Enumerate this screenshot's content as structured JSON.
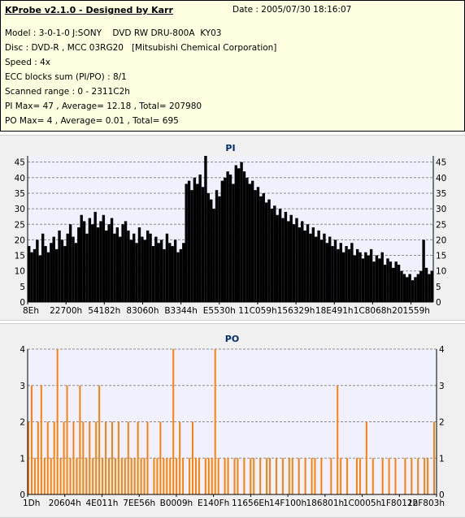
{
  "info": {
    "title": "KProbe v2.1.0 - Designed by Karr",
    "date": "Date : 2005/07/30 18:16:07",
    "lines": [
      "Model : 3-0-1-0 J:SONY    DVD RW DRU-800A  KY03",
      "Disc : DVD-R , MCC 03RG20   [Mitsubishi Chemical Corporation]",
      "Speed : 4x",
      "ECC blocks sum (PI/PO) : 8/1",
      "Scanned range : 0 - 2311C2h",
      "PI Max= 47 , Average= 12.18 , Total= 207980",
      "PO Max= 4 , Average= 0.01 , Total= 695"
    ]
  },
  "colors": {
    "pi": "#000000",
    "po": "#ff8000",
    "plot_bg": "#f0f0ff",
    "axis": "#000000",
    "title": "#002e6b"
  },
  "chart_data": [
    {
      "type": "area",
      "title": "PI",
      "ylim": [
        0,
        47
      ],
      "yticks": [
        0,
        5,
        10,
        15,
        20,
        25,
        30,
        35,
        40,
        45
      ],
      "xticks": [
        "8Eh",
        "22700h",
        "54182h",
        "83060h",
        "B3344h",
        "E5530h",
        "11C059h",
        "156329h",
        "18E491h",
        "1C8068h",
        "201559h"
      ],
      "grid": "horizontal dashed",
      "series": [
        {
          "values": [
            18,
            16,
            17,
            20,
            15,
            22,
            18,
            16,
            19,
            21,
            17,
            23,
            20,
            18,
            22,
            25,
            21,
            19,
            24,
            28,
            26,
            22,
            27,
            25,
            29,
            24,
            26,
            28,
            23,
            25,
            27,
            22,
            24,
            21,
            25,
            26,
            23,
            20,
            22,
            19,
            24,
            21,
            20,
            23,
            22,
            18,
            21,
            19,
            20,
            17,
            22,
            19,
            18,
            20,
            16,
            17,
            19,
            38,
            39,
            36,
            40,
            38,
            41,
            37,
            47,
            35,
            33,
            30,
            36,
            34,
            39,
            40,
            42,
            41,
            38,
            44,
            43,
            45,
            42,
            40,
            38,
            39,
            36,
            37,
            34,
            35,
            32,
            33,
            30,
            31,
            28,
            30,
            27,
            29,
            26,
            28,
            25,
            27,
            24,
            26,
            23,
            25,
            22,
            24,
            21,
            23,
            20,
            22,
            19,
            21,
            18,
            20,
            17,
            19,
            16,
            18,
            17,
            19,
            15,
            17,
            16,
            14,
            16,
            15,
            17,
            13,
            15,
            14,
            16,
            12,
            14,
            13,
            11,
            13,
            12,
            10,
            9,
            8,
            9,
            7,
            8,
            9,
            10,
            20,
            11,
            9,
            10
          ]
        }
      ]
    },
    {
      "type": "bar",
      "title": "PO",
      "ylim": [
        0,
        4
      ],
      "yticks": [
        0,
        1,
        2,
        3,
        4
      ],
      "xticks": [
        "1Dh",
        "20604h",
        "4E011h",
        "7EE56h",
        "B0009h",
        "E140Fh",
        "11656Eh",
        "14F100h",
        "186801h",
        "1C0005h",
        "1F8011h",
        "22F803h"
      ],
      "grid": "horizontal dashed",
      "series": [
        {
          "values": [
            2,
            3,
            1,
            2,
            3,
            1,
            2,
            1,
            2,
            4,
            1,
            2,
            3,
            1,
            2,
            1,
            3,
            2,
            1,
            2,
            1,
            2,
            3,
            1,
            2,
            1,
            2,
            1,
            2,
            1,
            1,
            2,
            1,
            1,
            2,
            1,
            1,
            2,
            0,
            1,
            1,
            2,
            1,
            1,
            1,
            4,
            1,
            2,
            1,
            0,
            1,
            2,
            1,
            1,
            0,
            1,
            1,
            1,
            4,
            1,
            0,
            1,
            1,
            0,
            1,
            1,
            0,
            1,
            0,
            1,
            1,
            0,
            1,
            0,
            1,
            1,
            0,
            1,
            0,
            1,
            0,
            1,
            1,
            0,
            1,
            0,
            1,
            0,
            1,
            1,
            0,
            1,
            0,
            0,
            1,
            0,
            3,
            1,
            0,
            1,
            0,
            0,
            1,
            1,
            0,
            2,
            0,
            1,
            0,
            0,
            1,
            0,
            1,
            0,
            1,
            0,
            0,
            1,
            0,
            1,
            0,
            1,
            0,
            1,
            1,
            0,
            2
          ]
        }
      ]
    }
  ]
}
